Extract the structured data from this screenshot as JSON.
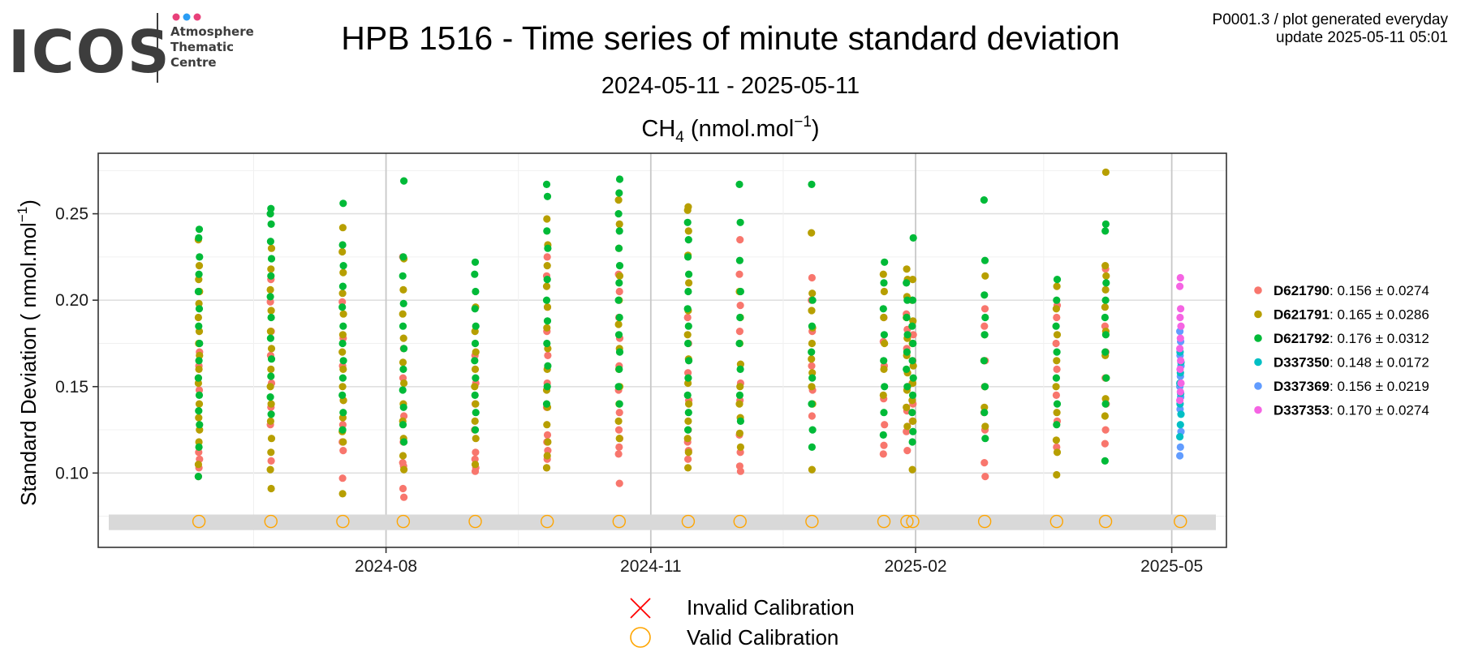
{
  "logo": {
    "wordmark": "ICOS",
    "line1": "Atmosphere",
    "line2": "Thematic",
    "line3": "Centre",
    "dot_colors": [
      "#e8417a",
      "#2a9df4",
      "#e8417a"
    ]
  },
  "meta": {
    "line1": "P0001.3 / plot generated everyday",
    "line2": "update  2025-05-11 05:01"
  },
  "title": "HPB 1516 - Time series of minute standard deviation",
  "subtitle": "2024-05-11 - 2025-05-11",
  "chart_data": {
    "type": "scatter",
    "panel_title": {
      "species": "CH",
      "subscript": "4",
      "unit_pre": " (nmol.mol",
      "superscript": "−1",
      "unit_post": ")"
    },
    "ylabel": {
      "pre": "Standard Deviation ( nmol.mol",
      "superscript": "−1",
      "post": ")"
    },
    "xlabel": "",
    "xlim": [
      "2024-04-23",
      "2025-05-20"
    ],
    "ylim": [
      0.057,
      0.285
    ],
    "x_ticks": [
      "2024-08-01",
      "2024-11-01",
      "2025-02-01",
      "2025-05-01"
    ],
    "x_tick_labels": [
      "2024-08",
      "2024-11",
      "2025-02",
      "2025-05"
    ],
    "y_ticks": [
      0.1,
      0.15,
      0.2,
      0.25
    ],
    "y_tick_labels": [
      "0.10",
      "0.15",
      "0.20",
      "0.25"
    ],
    "grid": true,
    "legend_position": "right",
    "calibration_band": [
      0.067,
      0.076
    ],
    "calibration_dates": [
      "2024-05-28",
      "2024-06-22",
      "2024-07-17",
      "2024-08-07",
      "2024-09-01",
      "2024-09-26",
      "2024-10-21",
      "2024-11-14",
      "2024-12-02",
      "2024-12-27",
      "2025-01-21",
      "2025-01-29",
      "2025-01-31",
      "2025-02-25",
      "2025-03-22",
      "2025-04-08",
      "2025-05-04"
    ],
    "calibration_value": 0.072,
    "series": [
      {
        "name": "D621790",
        "color": "#F8766D",
        "mean": "0.156",
        "sd": "0.0274",
        "clusters": [
          {
            "date": "2024-05-28",
            "values": [
              0.098,
              0.103,
              0.108,
              0.112,
              0.148,
              0.155,
              0.162,
              0.17
            ]
          },
          {
            "date": "2024-06-22",
            "values": [
              0.107,
              0.128,
              0.138,
              0.152,
              0.168,
              0.182,
              0.199,
              0.212
            ]
          },
          {
            "date": "2024-07-17",
            "values": [
              0.097,
              0.113,
              0.118,
              0.128,
              0.142,
              0.162,
              0.178,
              0.199
            ]
          },
          {
            "date": "2024-08-07",
            "values": [
              0.086,
              0.091,
              0.104,
              0.106,
              0.118,
              0.133,
              0.155,
              0.172,
              0.225
            ]
          },
          {
            "date": "2024-09-01",
            "values": [
              0.101,
              0.103,
              0.108,
              0.112,
              0.125,
              0.14,
              0.152,
              0.168
            ]
          },
          {
            "date": "2024-09-26",
            "values": [
              0.103,
              0.108,
              0.113,
              0.118,
              0.122,
              0.138,
              0.152,
              0.168,
              0.182,
              0.196,
              0.214,
              0.225
            ]
          },
          {
            "date": "2024-10-21",
            "values": [
              0.094,
              0.111,
              0.115,
              0.12,
              0.125,
              0.135,
              0.148,
              0.162,
              0.178,
              0.19,
              0.205,
              0.215
            ]
          },
          {
            "date": "2024-11-14",
            "values": [
              0.108,
              0.113,
              0.118,
              0.125,
              0.142,
              0.158,
              0.175,
              0.19
            ]
          },
          {
            "date": "2024-12-02",
            "values": [
              0.101,
              0.104,
              0.112,
              0.122,
              0.142,
              0.152,
              0.182,
              0.197,
              0.215,
              0.235
            ]
          },
          {
            "date": "2024-12-27",
            "values": [
              0.133,
              0.148,
              0.162,
              0.182,
              0.2,
              0.213
            ]
          },
          {
            "date": "2025-01-21",
            "values": [
              0.111,
              0.116,
              0.128,
              0.143,
              0.162,
              0.176,
              0.19
            ]
          },
          {
            "date": "2025-01-29",
            "values": [
              0.113,
              0.124,
              0.136,
              0.15,
              0.172,
              0.183,
              0.192
            ]
          },
          {
            "date": "2025-01-31",
            "values": [
              0.13,
              0.14,
              0.152,
              0.165,
              0.18
            ]
          },
          {
            "date": "2025-02-25",
            "values": [
              0.098,
              0.106,
              0.125,
              0.135,
              0.15,
              0.165,
              0.185,
              0.195
            ]
          },
          {
            "date": "2025-03-22",
            "values": [
              0.115,
              0.13,
              0.145,
              0.16,
              0.175,
              0.19,
              0.197
            ]
          },
          {
            "date": "2025-04-08",
            "values": [
              0.117,
              0.125,
              0.14,
              0.155,
              0.17,
              0.185,
              0.218
            ]
          }
        ]
      },
      {
        "name": "D621791",
        "color": "#B79F00",
        "mean": "0.165",
        "sd": "0.0286",
        "clusters": [
          {
            "date": "2024-05-28",
            "values": [
              0.105,
              0.118,
              0.125,
              0.132,
              0.14,
              0.152,
              0.16,
              0.168,
              0.175,
              0.182,
              0.19,
              0.198,
              0.205,
              0.212,
              0.22,
              0.235
            ]
          },
          {
            "date": "2024-06-22",
            "values": [
              0.091,
              0.102,
              0.112,
              0.12,
              0.13,
              0.14,
              0.15,
              0.16,
              0.172,
              0.182,
              0.194,
              0.206,
              0.218,
              0.23
            ]
          },
          {
            "date": "2024-07-17",
            "values": [
              0.088,
              0.118,
              0.124,
              0.132,
              0.142,
              0.15,
              0.16,
              0.17,
              0.18,
              0.192,
              0.204,
              0.216,
              0.228,
              0.242
            ]
          },
          {
            "date": "2024-08-07",
            "values": [
              0.102,
              0.11,
              0.12,
              0.13,
              0.14,
              0.152,
              0.164,
              0.178,
              0.192,
              0.206,
              0.224
            ]
          },
          {
            "date": "2024-09-01",
            "values": [
              0.105,
              0.12,
              0.13,
              0.14,
              0.15,
              0.16,
              0.17,
              0.182,
              0.196
            ]
          },
          {
            "date": "2024-09-26",
            "values": [
              0.103,
              0.11,
              0.118,
              0.128,
              0.138,
              0.148,
              0.16,
              0.172,
              0.184,
              0.196,
              0.208,
              0.22,
              0.232,
              0.247
            ]
          },
          {
            "date": "2024-10-21",
            "values": [
              0.12,
              0.13,
              0.14,
              0.15,
              0.16,
              0.172,
              0.186,
              0.2,
              0.214,
              0.23,
              0.244,
              0.258
            ]
          },
          {
            "date": "2024-11-14",
            "values": [
              0.103,
              0.112,
              0.12,
              0.13,
              0.14,
              0.152,
              0.166,
              0.18,
              0.194,
              0.21,
              0.226,
              0.24,
              0.252,
              0.254
            ]
          },
          {
            "date": "2024-12-02",
            "values": [
              0.115,
              0.123,
              0.132,
              0.14,
              0.15,
              0.163,
              0.175,
              0.19,
              0.205
            ]
          },
          {
            "date": "2024-12-27",
            "values": [
              0.102,
              0.14,
              0.15,
              0.158,
              0.166,
              0.175,
              0.184,
              0.194,
              0.204,
              0.239
            ]
          },
          {
            "date": "2025-01-21",
            "values": [
              0.145,
              0.16,
              0.175,
              0.19,
              0.205,
              0.215
            ]
          },
          {
            "date": "2025-01-29",
            "values": [
              0.127,
              0.138,
              0.148,
              0.158,
              0.168,
              0.178,
              0.19,
              0.202,
              0.212,
              0.218
            ]
          },
          {
            "date": "2025-01-31",
            "values": [
              0.102,
              0.13,
              0.142,
              0.152,
              0.162,
              0.175,
              0.188,
              0.2,
              0.212
            ]
          },
          {
            "date": "2025-02-25",
            "values": [
              0.127,
              0.138,
              0.15,
              0.165,
              0.18,
              0.214
            ]
          },
          {
            "date": "2025-03-22",
            "values": [
              0.099,
              0.112,
              0.119,
              0.135,
              0.15,
              0.165,
              0.18,
              0.195,
              0.208
            ]
          },
          {
            "date": "2025-04-08",
            "values": [
              0.133,
              0.143,
              0.155,
              0.168,
              0.182,
              0.196,
              0.206,
              0.214,
              0.22,
              0.274
            ]
          }
        ]
      },
      {
        "name": "D621792",
        "color": "#00BA38",
        "mean": "0.176",
        "sd": "0.0312",
        "clusters": [
          {
            "date": "2024-05-28",
            "values": [
              0.098,
              0.115,
              0.128,
              0.136,
              0.145,
              0.155,
              0.165,
              0.175,
              0.185,
              0.195,
              0.205,
              0.215,
              0.225,
              0.236,
              0.241
            ]
          },
          {
            "date": "2024-06-22",
            "values": [
              0.134,
              0.144,
              0.156,
              0.166,
              0.178,
              0.19,
              0.202,
              0.214,
              0.224,
              0.234,
              0.244,
              0.25,
              0.253
            ]
          },
          {
            "date": "2024-07-17",
            "values": [
              0.125,
              0.135,
              0.145,
              0.155,
              0.165,
              0.175,
              0.185,
              0.196,
              0.208,
              0.22,
              0.232,
              0.256
            ]
          },
          {
            "date": "2024-08-07",
            "values": [
              0.118,
              0.128,
              0.138,
              0.148,
              0.16,
              0.172,
              0.185,
              0.198,
              0.214,
              0.225,
              0.269
            ]
          },
          {
            "date": "2024-09-01",
            "values": [
              0.125,
              0.135,
              0.145,
              0.155,
              0.165,
              0.175,
              0.185,
              0.195,
              0.205,
              0.215,
              0.222
            ]
          },
          {
            "date": "2024-09-26",
            "values": [
              0.14,
              0.15,
              0.162,
              0.175,
              0.188,
              0.2,
              0.212,
              0.23,
              0.24,
              0.26,
              0.267
            ]
          },
          {
            "date": "2024-10-21",
            "values": [
              0.14,
              0.15,
              0.16,
              0.17,
              0.18,
              0.19,
              0.2,
              0.21,
              0.22,
              0.23,
              0.24,
              0.25,
              0.262,
              0.27
            ]
          },
          {
            "date": "2024-11-14",
            "values": [
              0.125,
              0.135,
              0.145,
              0.155,
              0.165,
              0.175,
              0.185,
              0.195,
              0.205,
              0.215,
              0.225,
              0.235,
              0.245
            ]
          },
          {
            "date": "2024-12-02",
            "values": [
              0.13,
              0.145,
              0.16,
              0.175,
              0.19,
              0.205,
              0.223,
              0.245,
              0.267
            ]
          },
          {
            "date": "2024-12-27",
            "values": [
              0.115,
              0.125,
              0.14,
              0.155,
              0.17,
              0.185,
              0.2,
              0.267
            ]
          },
          {
            "date": "2025-01-21",
            "values": [
              0.122,
              0.135,
              0.15,
              0.165,
              0.18,
              0.195,
              0.21,
              0.222
            ]
          },
          {
            "date": "2025-01-29",
            "values": [
              0.15,
              0.16,
              0.17,
              0.18,
              0.19,
              0.2,
              0.21
            ]
          },
          {
            "date": "2025-01-31",
            "values": [
              0.118,
              0.124,
              0.135,
              0.145,
              0.155,
              0.165,
              0.175,
              0.185,
              0.2,
              0.236
            ]
          },
          {
            "date": "2025-02-25",
            "values": [
              0.12,
              0.135,
              0.15,
              0.165,
              0.18,
              0.19,
              0.203,
              0.223,
              0.258
            ]
          },
          {
            "date": "2025-03-22",
            "values": [
              0.128,
              0.14,
              0.155,
              0.17,
              0.185,
              0.2,
              0.212
            ]
          },
          {
            "date": "2025-04-08",
            "values": [
              0.107,
              0.14,
              0.155,
              0.17,
              0.18,
              0.19,
              0.2,
              0.21,
              0.24,
              0.244
            ]
          }
        ]
      },
      {
        "name": "D337350",
        "color": "#00BFC4",
        "mean": "0.148",
        "sd": "0.0172",
        "clusters": [
          {
            "date": "2025-05-04",
            "values": [
              0.121,
              0.128,
              0.134,
              0.14,
              0.146,
              0.152,
              0.158,
              0.164,
              0.17
            ]
          }
        ]
      },
      {
        "name": "D337369",
        "color": "#619CFF",
        "mean": "0.156",
        "sd": "0.0219",
        "clusters": [
          {
            "date": "2025-05-04",
            "values": [
              0.11,
              0.115,
              0.124,
              0.137,
              0.144,
              0.15,
              0.156,
              0.162,
              0.168,
              0.176,
              0.182
            ]
          }
        ]
      },
      {
        "name": "D337353",
        "color": "#F564E3",
        "mean": "0.170",
        "sd": "0.0274",
        "clusters": [
          {
            "date": "2025-05-04",
            "values": [
              0.142,
              0.147,
              0.152,
              0.16,
              0.165,
              0.172,
              0.178,
              0.185,
              0.19,
              0.195,
              0.208,
              0.213
            ]
          }
        ]
      }
    ],
    "calibration_legend": {
      "invalid": {
        "label": "Invalid Calibration",
        "symbol": "cross",
        "color": "#ff0000"
      },
      "valid": {
        "label": "Valid Calibration",
        "symbol": "circle",
        "color": "#FFA500"
      }
    },
    "colors": {
      "band": "#d9d9d9",
      "grid_major": "#e0e0e0",
      "grid_minor": "#f0f0f0",
      "grid_date": "#c8c8c8"
    }
  }
}
